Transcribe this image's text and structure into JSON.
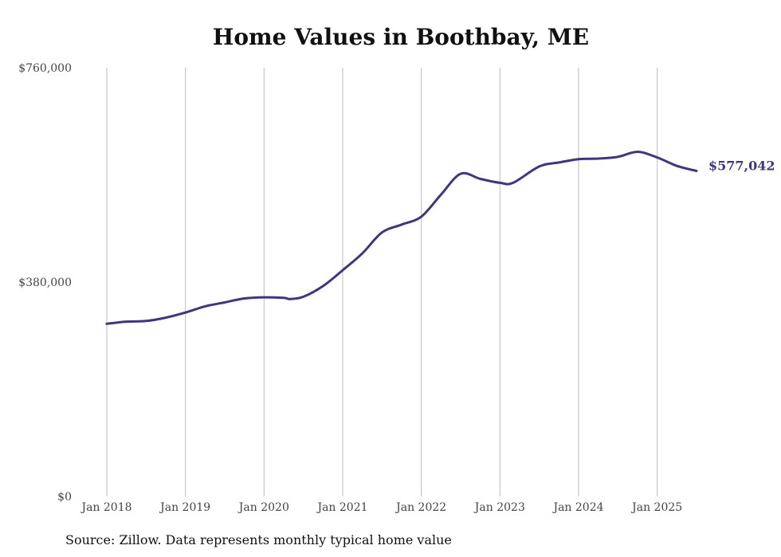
{
  "chart_data": {
    "type": "line",
    "title": "Home Values in Boothbay, ME",
    "xlabel": "",
    "ylabel": "",
    "ylim": [
      0,
      760000
    ],
    "yticks": [
      0,
      380000,
      760000
    ],
    "ytick_labels": [
      "$0",
      "$380,000",
      "$760,000"
    ],
    "xlim": [
      "2018-01",
      "2025-07"
    ],
    "xtick_dates": [
      "2018-01",
      "2019-01",
      "2020-01",
      "2021-01",
      "2022-01",
      "2023-01",
      "2024-01",
      "2025-01"
    ],
    "xtick_labels": [
      "Jan 2018",
      "Jan 2019",
      "Jan 2020",
      "Jan 2021",
      "Jan 2022",
      "Jan 2023",
      "Jan 2024",
      "Jan 2025"
    ],
    "grid": "vertical",
    "series": [
      {
        "color": "#3d3589",
        "points": [
          [
            "2018-01",
            306000
          ],
          [
            "2018-04",
            310000
          ],
          [
            "2018-07",
            311000
          ],
          [
            "2018-10",
            317000
          ],
          [
            "2019-01",
            326000
          ],
          [
            "2019-04",
            337000
          ],
          [
            "2019-07",
            344000
          ],
          [
            "2019-10",
            351000
          ],
          [
            "2020-01",
            353000
          ],
          [
            "2020-04",
            352000
          ],
          [
            "2020-05",
            350000
          ],
          [
            "2020-07",
            354000
          ],
          [
            "2020-10",
            373000
          ],
          [
            "2021-01",
            401000
          ],
          [
            "2021-04",
            431000
          ],
          [
            "2021-07",
            468000
          ],
          [
            "2021-10",
            482000
          ],
          [
            "2022-01",
            496000
          ],
          [
            "2022-04",
            535000
          ],
          [
            "2022-07",
            572000
          ],
          [
            "2022-10",
            563000
          ],
          [
            "2023-01",
            556000
          ],
          [
            "2023-03",
            556000
          ],
          [
            "2023-07",
            585000
          ],
          [
            "2023-10",
            592000
          ],
          [
            "2024-01",
            598000
          ],
          [
            "2024-04",
            599000
          ],
          [
            "2024-07",
            602000
          ],
          [
            "2024-10",
            611000
          ],
          [
            "2025-01",
            601000
          ],
          [
            "2025-04",
            586000
          ],
          [
            "2025-07",
            577042
          ]
        ],
        "end_label": "$577,042"
      }
    ]
  },
  "source_note": "Source: Zillow. Data represents monthly typical home value"
}
